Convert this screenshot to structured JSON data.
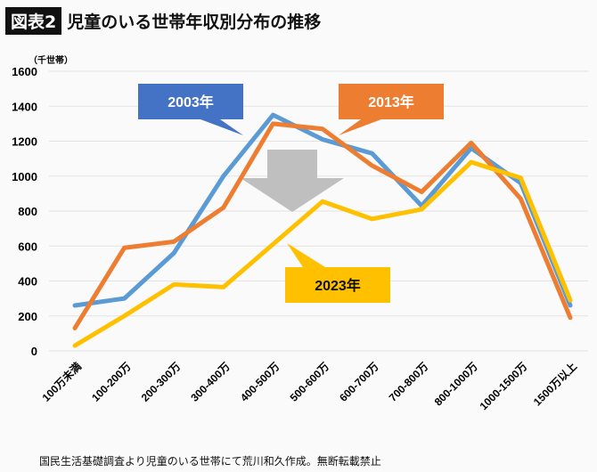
{
  "header": {
    "badge": "図表2",
    "title": "児童のいる世帯年収別分布の推移"
  },
  "footer": "国民生活基礎調査より児童のいる世帯にて荒川和久作成。無断転載禁止",
  "chart_data": {
    "type": "line",
    "title": "児童のいる世帯年収別分布の推移",
    "ylabel": "（千世帯）",
    "ylim": [
      0,
      1600
    ],
    "yticks": [
      0,
      200,
      400,
      600,
      800,
      1000,
      1200,
      1400,
      1600
    ],
    "grid": true,
    "categories": [
      "100万未満",
      "100-200万",
      "200-300万",
      "300-400万",
      "400-500万",
      "500-600万",
      "600-700万",
      "700-800万",
      "800-1000万",
      "1000-1500万",
      "1500万以上"
    ],
    "series": [
      {
        "name": "2003年",
        "color": "#5b9bd5",
        "label_color": "#4472c4",
        "values": [
          260,
          300,
          560,
          1000,
          1350,
          1210,
          1130,
          830,
          1160,
          960,
          260
        ]
      },
      {
        "name": "2013年",
        "color": "#ed7d31",
        "label_color": "#ed7d31",
        "values": [
          130,
          590,
          625,
          820,
          1300,
          1270,
          1060,
          910,
          1190,
          870,
          190
        ]
      },
      {
        "name": "2023年",
        "color": "#ffc000",
        "label_color": "#ffc000",
        "values": [
          30,
          200,
          380,
          365,
          610,
          855,
          755,
          810,
          1080,
          990,
          290
        ]
      }
    ],
    "annotation": "down-arrow"
  }
}
